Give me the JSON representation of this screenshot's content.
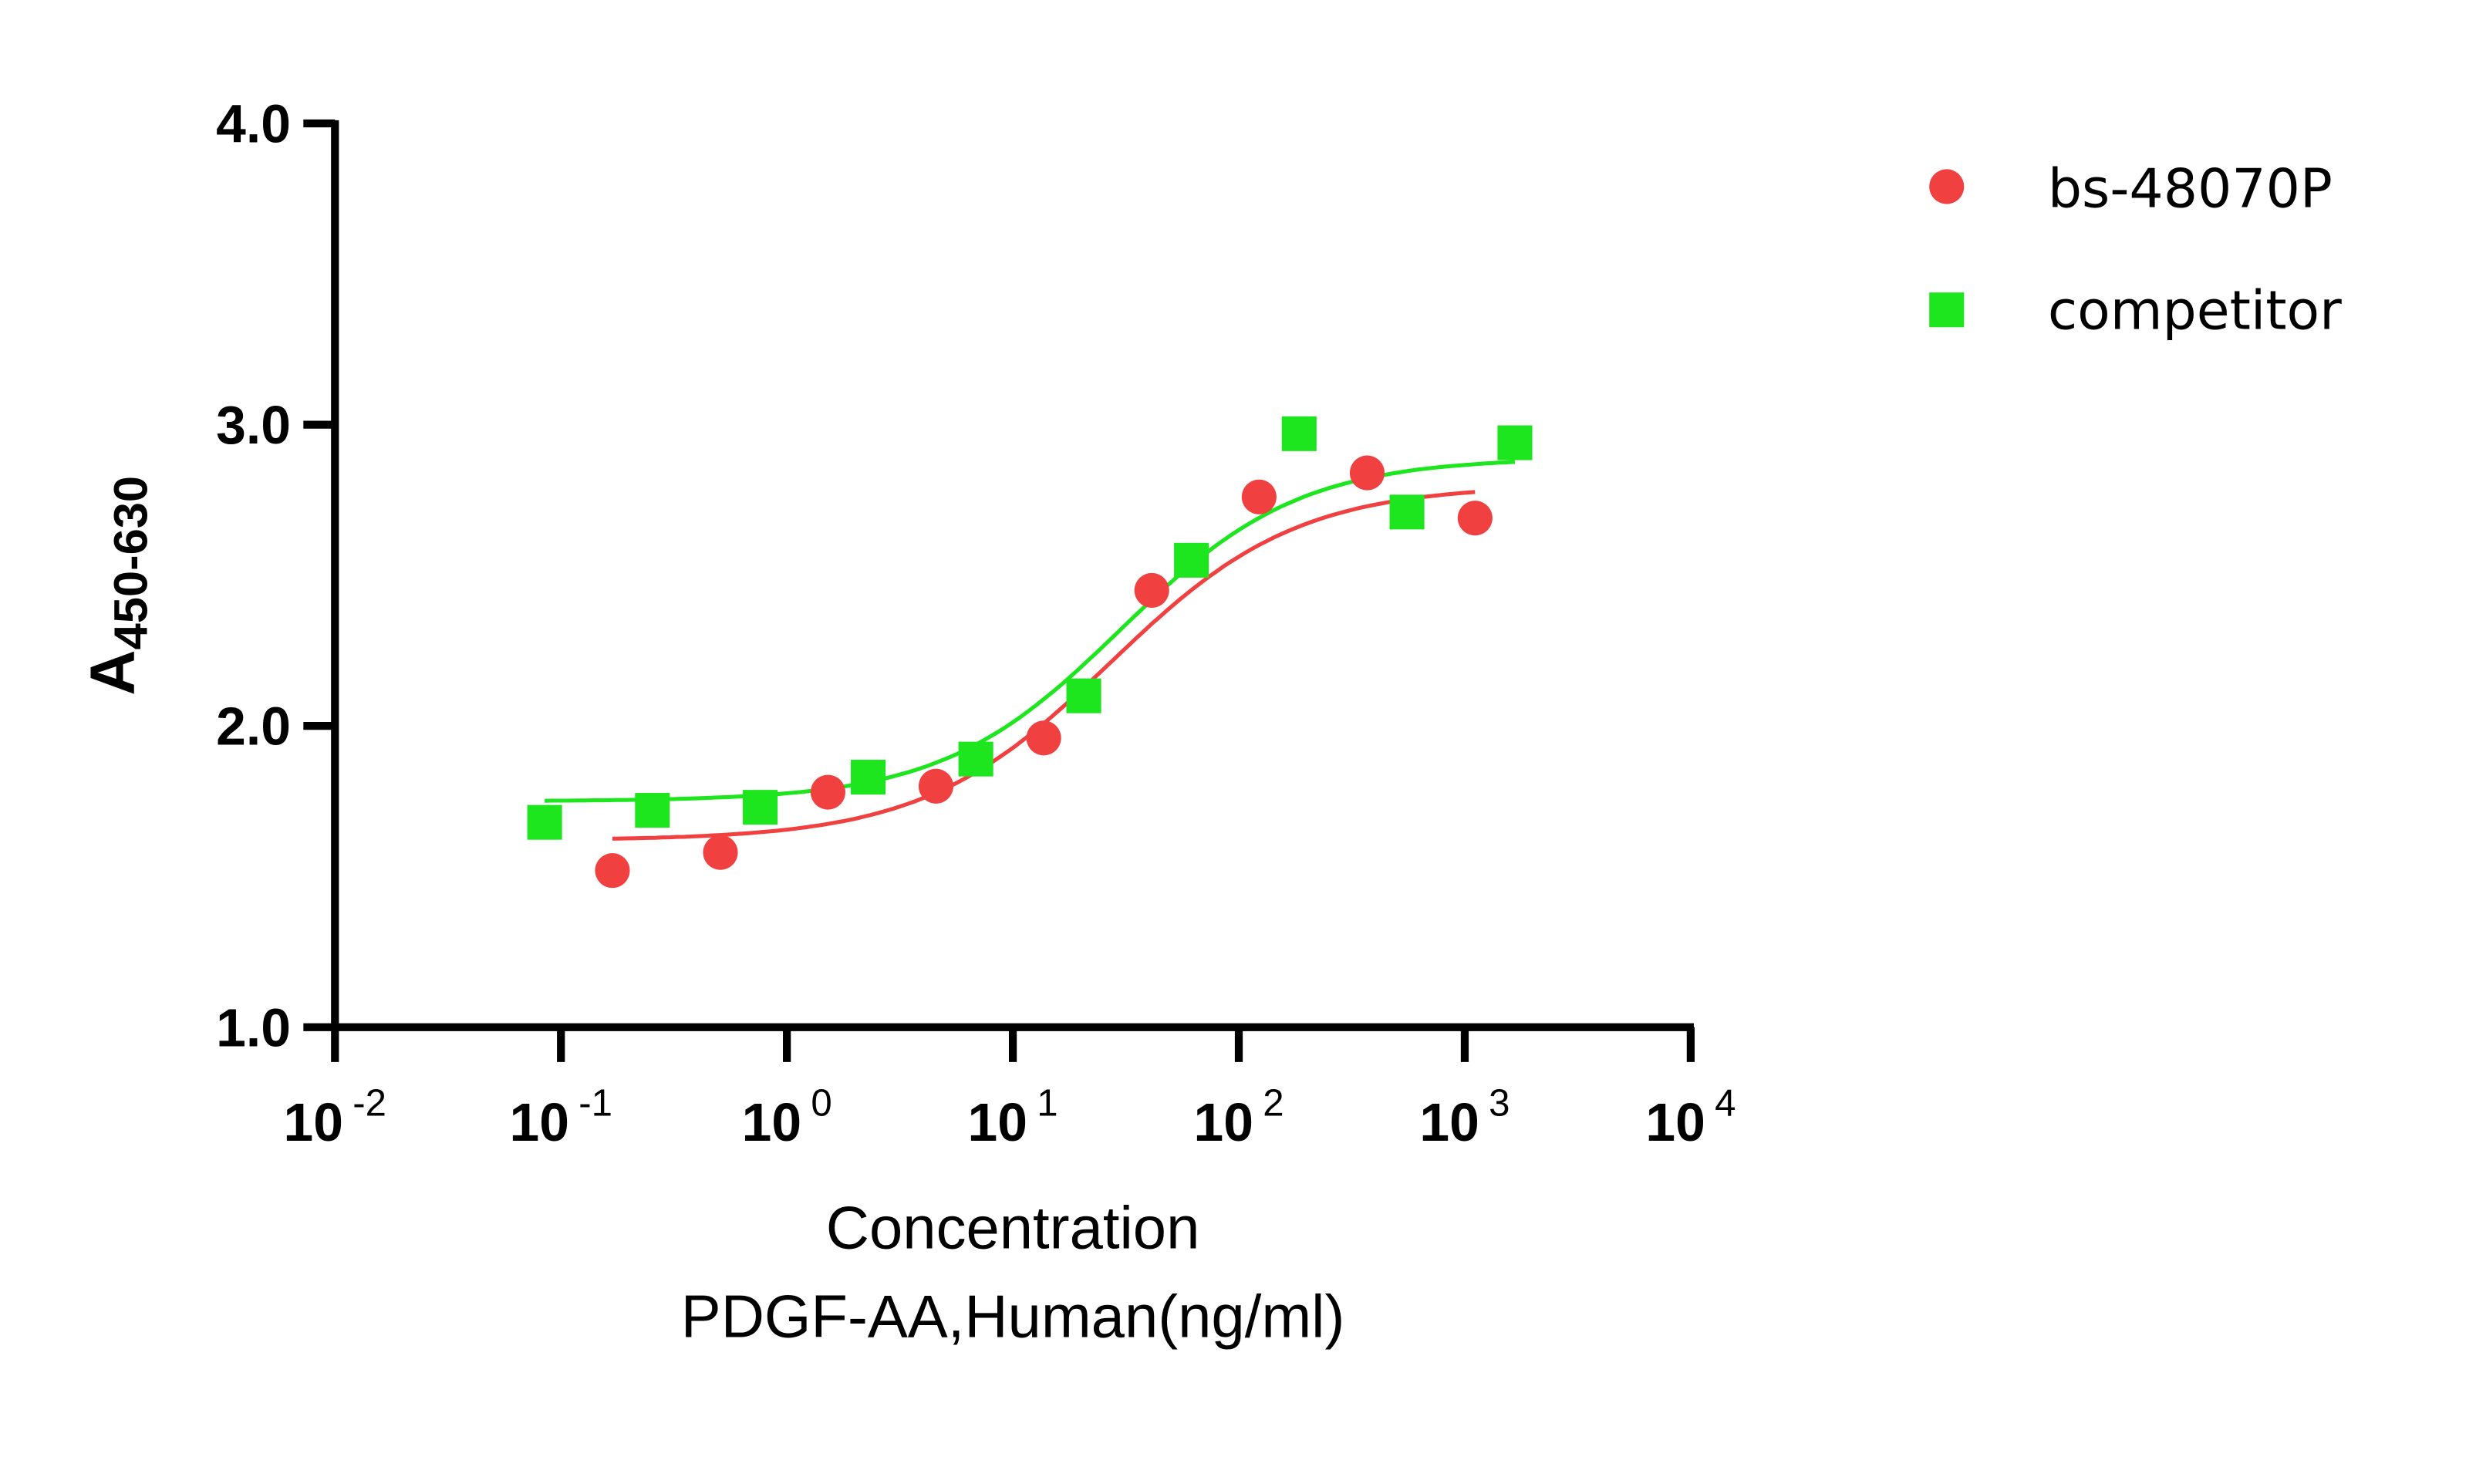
{
  "chart_data": {
    "type": "scatter",
    "title": "",
    "xlabel": "Concentration",
    "xlabel2": "PDGF-AA,Human(ng/ml)",
    "ylabel": "A",
    "ylabel_sub": "450-630",
    "xscale": "log",
    "xlim": [
      0.01,
      10000
    ],
    "ylim": [
      1.0,
      4.0
    ],
    "x_ticks": [
      {
        "base": "10",
        "exp": "-2",
        "value": 0.01
      },
      {
        "base": "10",
        "exp": "-1",
        "value": 0.1
      },
      {
        "base": "10",
        "exp": "0",
        "value": 1
      },
      {
        "base": "10",
        "exp": "1",
        "value": 10
      },
      {
        "base": "10",
        "exp": "2",
        "value": 100
      },
      {
        "base": "10",
        "exp": "3",
        "value": 1000
      },
      {
        "base": "10",
        "exp": "4",
        "value": 10000
      }
    ],
    "y_ticks": [
      "1.0",
      "2.0",
      "3.0",
      "4.0"
    ],
    "grid": false,
    "legend_position": "top-right",
    "series": [
      {
        "name": "bs-48070P",
        "marker": "circle",
        "color": "#f04040",
        "x": [
          0.169,
          0.508,
          1.52,
          4.57,
          13.7,
          41.2,
          123,
          370,
          1111
        ],
        "y": [
          1.52,
          1.58,
          1.78,
          1.8,
          1.96,
          2.45,
          2.76,
          2.84,
          2.69
        ],
        "fit": {
          "bottom": 1.62,
          "top": 2.8,
          "ec50": 27,
          "hill": 1.05
        }
      },
      {
        "name": "competitor",
        "marker": "square",
        "color": "#1ee61e",
        "x": [
          0.0847,
          0.254,
          0.762,
          2.29,
          6.86,
          20.6,
          61.7,
          185,
          555,
          1667
        ],
        "y": [
          1.68,
          1.72,
          1.73,
          1.83,
          1.89,
          2.1,
          2.55,
          2.97,
          2.71,
          2.94
        ],
        "fit": {
          "bottom": 1.75,
          "top": 2.89,
          "ec50": 30,
          "hill": 1.1
        }
      }
    ]
  }
}
